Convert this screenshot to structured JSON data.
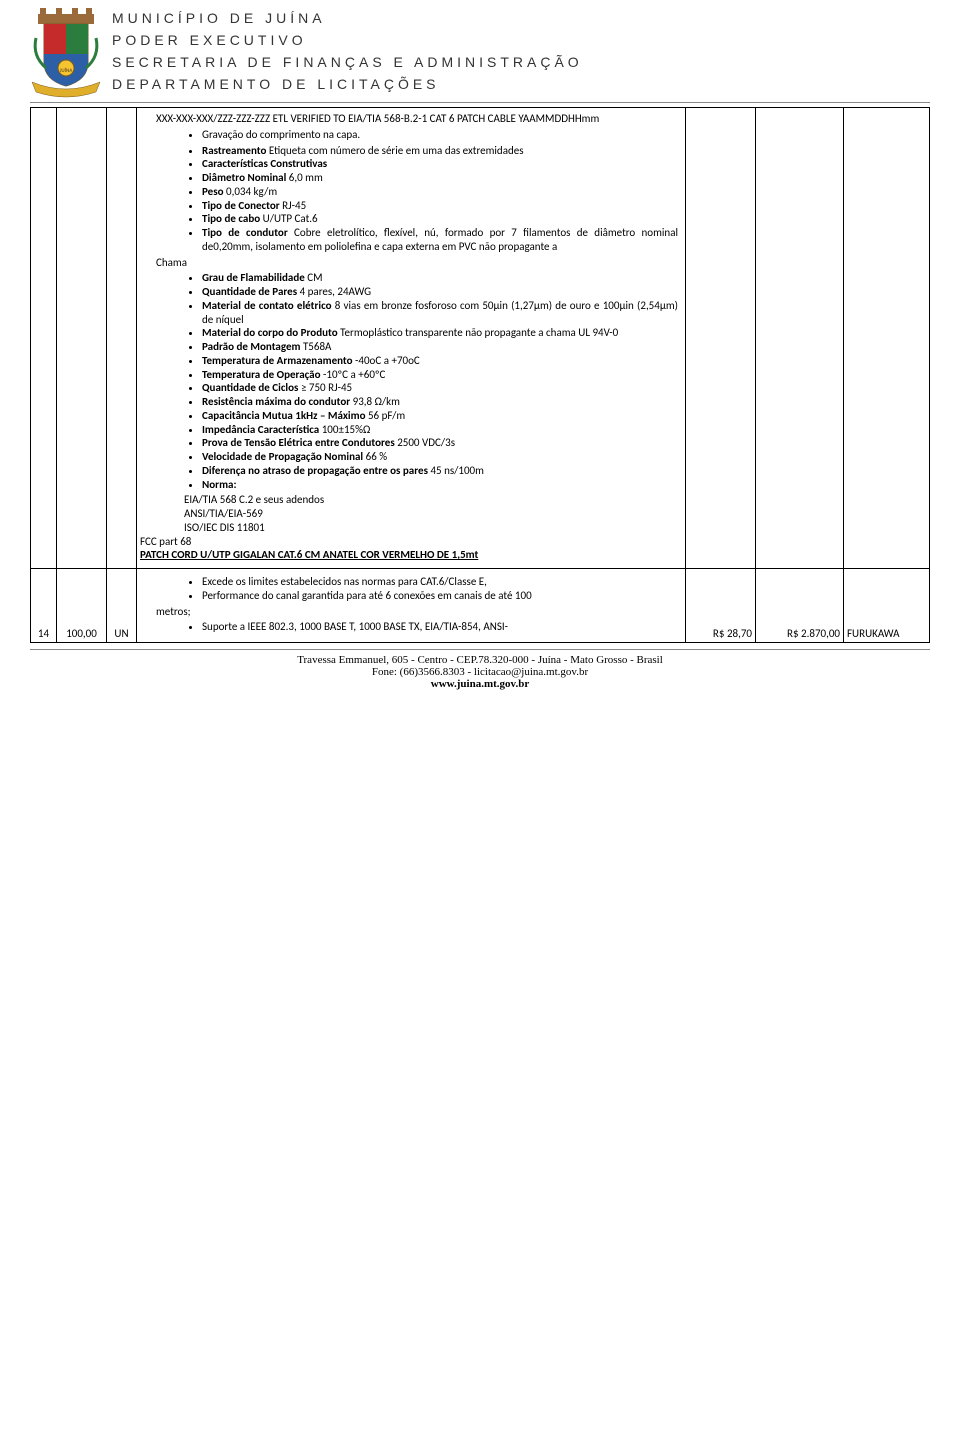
{
  "header": {
    "line1": "MUNICÍPIO DE JUÍNA",
    "line2": "PODER EXECUTIVO",
    "line3": "SECRETARIA DE FINANÇAS E ADMINISTRAÇÃO",
    "line4": "DEPARTAMENTO DE LICITAÇÕES"
  },
  "row1": {
    "pre_lines": [
      "XXX-XXX-XXX/ZZZ-ZZZ-ZZZ ETL VERIFIED TO EIA/TIA 568-B.2-1 CAT 6 PATCH CABLE YAAMMDDHHmm"
    ],
    "bullets1": [
      "Gravação do comprimento na capa."
    ],
    "bullets2": [
      {
        "b": "Rastreamento",
        "t": " Etiqueta com número de série em uma das extremidades"
      },
      {
        "b": "Características Construtivas",
        "t": ""
      },
      {
        "b": "Diâmetro Nominal",
        "t": " 6,0 mm"
      },
      {
        "b": "Peso",
        "t": " 0,034 kg/m"
      },
      {
        "b": "Tipo de Conector",
        "t": " RJ-45"
      },
      {
        "b": "Tipo de cabo",
        "t": " U/UTP Cat.6"
      },
      {
        "b": "Tipo de condutor",
        "t": " Cobre eletrolítico, flexível, nú, formado por 7 filamentos de diâmetro nominal de0,20mm, isolamento em poliolefina e capa externa em PVC não propagante a"
      }
    ],
    "chama": "Chama",
    "bullets3": [
      {
        "b": "Grau de Flamabilidade",
        "t": " CM"
      },
      {
        "b": "Quantidade de Pares",
        "t": " 4 pares, 24AWG"
      },
      {
        "b": "Material de contato elétrico",
        "t": " 8 vias em bronze fosforoso com 50µin (1,27µm) de ouro e 100µin (2,54µm) de níquel"
      },
      {
        "b": "Material do corpo do Produto",
        "t": " Termoplástico transparente não propagante a chama UL 94V-0"
      },
      {
        "b": "Padrão de Montagem",
        "t": " T568A"
      },
      {
        "b": "Temperatura de Armazenamento",
        "t": " -40oC a +70oC"
      },
      {
        "b": "Temperatura de Operação",
        "t": " -10ºC a +60ºC"
      },
      {
        "b": "Quantidade de Ciclos",
        "t": " ≥ 750 RJ-45"
      },
      {
        "b": "Resistência máxima do condutor",
        "t": " 93,8 Ω/km"
      },
      {
        "b": "Capacitância Mutua 1kHz – Máximo",
        "t": " 56 pF/m"
      },
      {
        "b": "Impedância Característica",
        "t": " 100±15%Ω"
      },
      {
        "b": "Prova de Tensão Elétrica entre Condutores",
        "t": " 2500 VDC/3s"
      },
      {
        "b": "Velocidade de Propagação Nominal",
        "t": " 66 %"
      },
      {
        "b": "Diferença no atraso de propagação entre os pares",
        "t": " 45 ns/100m"
      },
      {
        "b": "Norma:",
        "t": ""
      }
    ],
    "norm_lines": [
      "EIA/TIA 568 C.2 e seus adendos",
      "ANSI/TIA/EIA-569",
      "ISO/IEC DIS 11801"
    ],
    "fcc": "FCC part 68",
    "heading2": "PATCH CORD U/UTP GIGALAN CAT.6 CM ANATEL COR VERMELHO DE 1,5mt"
  },
  "row2": {
    "num": "14",
    "qty": "100,00",
    "un": "UN",
    "bullets": [
      "Excede os limites estabelecidos nas normas para CAT.6/Classe E,",
      "Performance do canal garantida para até 6 conexões em canais de até 100"
    ],
    "metros": "metros;",
    "bullets2": [
      "Suporte a IEEE 802.3, 1000 BASE T, 1000 BASE TX, EIA/TIA-854, ANSI-"
    ],
    "v1": "R$ 28,70",
    "v2": "R$ 2.870,00",
    "brand": "FURUKAWA"
  },
  "footer": {
    "addr": "Travessa Emmanuel, 605 - Centro - CEP.78.320-000 - Juína - Mato Grosso - Brasil",
    "fone": "Fone: (66)3566.8303 - licitacao@juina.mt.gov.br",
    "site": "www.juina.mt.gov.br"
  },
  "crest_colors": {
    "shield": "#f5c531",
    "red": "#c52b2b",
    "green": "#2a7d3c",
    "blue": "#2c5fa6",
    "ribbon": "#dfae2a"
  }
}
